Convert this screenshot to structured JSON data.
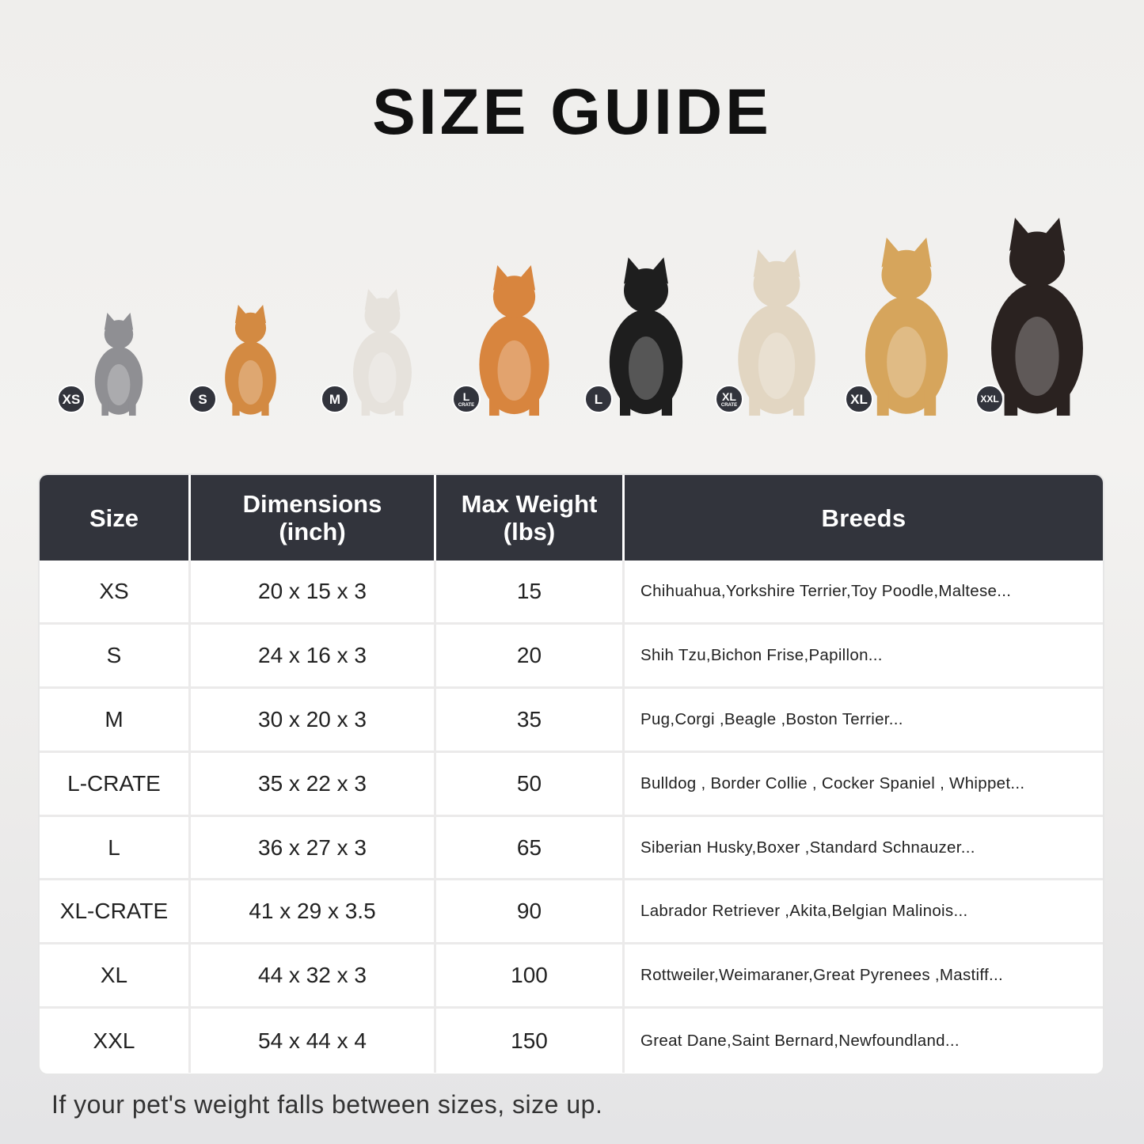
{
  "title": "SIZE GUIDE",
  "pets": [
    {
      "badge": "XS",
      "badge_sub": "",
      "animal": "grey-cat",
      "color": "#8f8f93"
    },
    {
      "badge": "S",
      "badge_sub": "",
      "animal": "pomeranian",
      "color": "#d38a42"
    },
    {
      "badge": "M",
      "badge_sub": "",
      "animal": "french-bulldog",
      "color": "#e6e2dc"
    },
    {
      "badge": "L",
      "badge_sub": "CRATE",
      "animal": "shiba-inu",
      "color": "#d8853e"
    },
    {
      "badge": "L",
      "badge_sub": "",
      "animal": "border-collie",
      "color": "#1e1e1e"
    },
    {
      "badge": "XL",
      "badge_sub": "CRATE",
      "animal": "labrador",
      "color": "#e2d6c2"
    },
    {
      "badge": "XL",
      "badge_sub": "",
      "animal": "golden-retriever",
      "color": "#d6a55c"
    },
    {
      "badge": "XXL",
      "badge_sub": "",
      "animal": "doberman",
      "color": "#2a2220"
    }
  ],
  "table": {
    "headers": [
      "Size",
      "Dimensions\n(inch)",
      "Max Weight\n(lbs)",
      "Breeds"
    ],
    "rows": [
      [
        "XS",
        "20 x 15 x 3",
        "15",
        "Chihuahua,Yorkshire Terrier,Toy Poodle,Maltese..."
      ],
      [
        "S",
        "24 x 16 x 3",
        "20",
        "Shih Tzu,Bichon Frise,Papillon..."
      ],
      [
        "M",
        "30 x 20 x 3",
        "35",
        "Pug,Corgi ,Beagle ,Boston Terrier..."
      ],
      [
        "L-CRATE",
        "35 x 22 x 3",
        "50",
        "Bulldog , Border Collie , Cocker Spaniel , Whippet..."
      ],
      [
        "L",
        "36 x 27 x 3",
        "65",
        "Siberian Husky,Boxer ,Standard Schnauzer..."
      ],
      [
        "XL-CRATE",
        "41 x 29 x 3.5",
        "90",
        "Labrador Retriever ,Akita,Belgian Malinois..."
      ],
      [
        "XL",
        "44 x 32 x 3",
        "100",
        "Rottweiler,Weimaraner,Great Pyrenees ,Mastiff..."
      ],
      [
        "XXL",
        "54 x 44 x 4",
        "150",
        "Great Dane,Saint Bernard,Newfoundland..."
      ]
    ]
  },
  "colors": {
    "header_bg": "#32343c",
    "badge_bg": "#32343c"
  },
  "footer": "If your pet's weight falls between sizes, size up."
}
